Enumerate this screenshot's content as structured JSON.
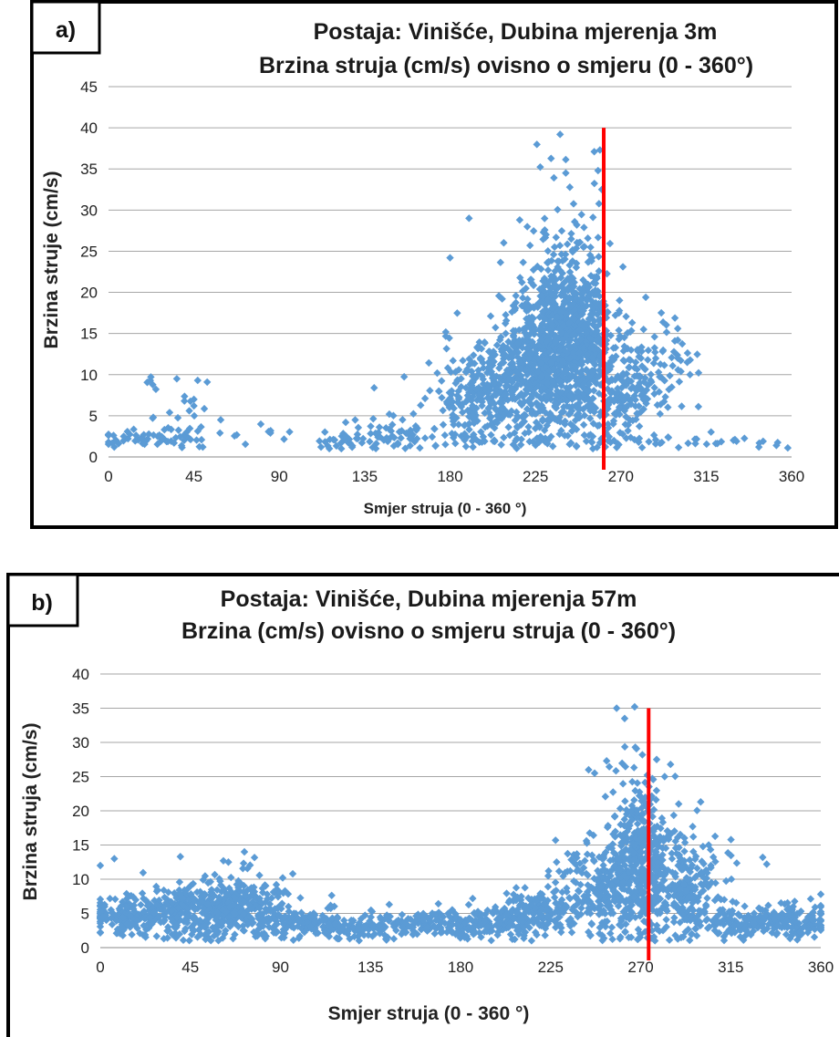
{
  "chart_data": [
    {
      "panel_label": "a)",
      "type": "scatter",
      "title": "Postaja: Vinišće, Dubina mjerenja  3m",
      "subtitle": "Brzina struja (cm/s) ovisno o smjeru (0 - 360°)",
      "xlabel": "Smjer struja (0 - 360 °)",
      "ylabel": "Brzina struje (cm/s)",
      "xlim": [
        0,
        360
      ],
      "ylim": [
        0,
        45
      ],
      "xticks": [
        "0",
        "45",
        "90",
        "135",
        "180",
        "225",
        "270",
        "315",
        "360"
      ],
      "yticks": [
        "0",
        "5",
        "10",
        "15",
        "20",
        "25",
        "30",
        "35",
        "40",
        "45"
      ],
      "grid": "horizontal",
      "marker_color": "#5b9bd5",
      "reference_line": {
        "x": 261,
        "y_range": [
          0,
          40
        ],
        "color": "#ff0000"
      },
      "clusters": [
        {
          "cx": 22,
          "cy": 2.2,
          "sx": 16,
          "sy": 0.8,
          "n": 50
        },
        {
          "cx": 40,
          "cy": 4.5,
          "sx": 8,
          "sy": 2.5,
          "n": 22
        },
        {
          "cx": 22,
          "cy": 8.5,
          "sx": 2,
          "sy": 1,
          "n": 4
        },
        {
          "cx": 85,
          "cy": 2.6,
          "sx": 12,
          "sy": 1,
          "n": 8
        },
        {
          "cx": 130,
          "cy": 2.2,
          "sx": 12,
          "sy": 1,
          "n": 35
        },
        {
          "cx": 158,
          "cy": 2.5,
          "sx": 12,
          "sy": 1.3,
          "n": 45
        },
        {
          "cx": 192,
          "cy": 7,
          "sx": 10,
          "sy": 4.5,
          "n": 200
        },
        {
          "cx": 222,
          "cy": 10,
          "sx": 13,
          "sy": 5,
          "n": 450
        },
        {
          "cx": 240,
          "cy": 16,
          "sx": 11,
          "sy": 7,
          "n": 650
        },
        {
          "cx": 252,
          "cy": 12,
          "sx": 8,
          "sy": 6,
          "n": 250
        },
        {
          "cx": 272,
          "cy": 8,
          "sx": 10,
          "sy": 4,
          "n": 180
        },
        {
          "cx": 295,
          "cy": 11,
          "sx": 8,
          "sy": 3,
          "n": 45
        },
        {
          "cx": 320,
          "cy": 1.8,
          "sx": 25,
          "sy": 0.5,
          "n": 25
        }
      ],
      "points": [
        [
          238,
          39.2
        ],
        [
          256,
          37.1
        ],
        [
          259,
          37.3
        ],
        [
          258,
          34.8
        ],
        [
          241,
          34.5
        ],
        [
          260,
          32.5
        ],
        [
          190,
          29
        ],
        [
          180,
          24.2
        ],
        [
          22,
          9.3
        ],
        [
          36,
          9.5
        ],
        [
          47,
          9.3
        ],
        [
          52,
          9.1
        ],
        [
          45,
          7
        ],
        [
          45,
          6.2
        ],
        [
          40,
          6.8
        ],
        [
          140,
          8.4
        ],
        [
          130,
          4.5
        ],
        [
          125,
          4.2
        ],
        [
          112,
          1.2
        ],
        [
          148,
          5.2
        ],
        [
          2,
          1.7
        ],
        [
          3,
          1.2
        ],
        [
          8,
          2.5
        ],
        [
          300,
          15.6
        ],
        [
          300,
          14.2
        ],
        [
          300,
          12
        ],
        [
          305,
          11.5
        ],
        [
          282,
          15.5
        ],
        [
          275,
          15.2
        ],
        [
          262,
          6
        ],
        [
          358,
          1.1
        ],
        [
          352,
          1.4
        ],
        [
          345,
          1.9
        ],
        [
          331,
          1.9
        ]
      ]
    },
    {
      "panel_label": "b)",
      "type": "scatter",
      "title": "Postaja: Vinišće, Dubina  mjerenja 57m",
      "subtitle": "Brzina (cm/s) ovisno o smjeru struja (0 - 360°)",
      "xlabel": "Smjer struja (0 - 360 °)",
      "ylabel": "Brzina struja (cm/s)",
      "xlim": [
        0,
        360
      ],
      "ylim": [
        0,
        40
      ],
      "xticks": [
        "0",
        "45",
        "90",
        "135",
        "180",
        "225",
        "270",
        "315",
        "360"
      ],
      "yticks": [
        "0",
        "5",
        "10",
        "15",
        "20",
        "25",
        "30",
        "35",
        "40"
      ],
      "grid": "horizontal",
      "marker_color": "#5b9bd5",
      "reference_line": {
        "x": 274,
        "y_range": [
          0,
          35
        ],
        "color": "#ff0000"
      },
      "clusters": [
        {
          "cx": 15,
          "cy": 4.5,
          "sx": 12,
          "sy": 2,
          "n": 150
        },
        {
          "cx": 45,
          "cy": 5.5,
          "sx": 14,
          "sy": 2.5,
          "n": 250
        },
        {
          "cx": 72,
          "cy": 6,
          "sx": 12,
          "sy": 2.8,
          "n": 250
        },
        {
          "cx": 105,
          "cy": 3.5,
          "sx": 12,
          "sy": 1.5,
          "n": 120
        },
        {
          "cx": 140,
          "cy": 3,
          "sx": 18,
          "sy": 1.2,
          "n": 150
        },
        {
          "cx": 185,
          "cy": 3.5,
          "sx": 16,
          "sy": 1.5,
          "n": 150
        },
        {
          "cx": 222,
          "cy": 5,
          "sx": 13,
          "sy": 2.2,
          "n": 200
        },
        {
          "cx": 255,
          "cy": 9,
          "sx": 10,
          "sy": 4.5,
          "n": 250
        },
        {
          "cx": 270,
          "cy": 14,
          "sx": 7,
          "sy": 7.5,
          "n": 350
        },
        {
          "cx": 290,
          "cy": 9,
          "sx": 11,
          "sy": 4.5,
          "n": 250
        },
        {
          "cx": 320,
          "cy": 3.5,
          "sx": 14,
          "sy": 1.5,
          "n": 150
        },
        {
          "cx": 348,
          "cy": 4,
          "sx": 10,
          "sy": 1.6,
          "n": 120
        }
      ],
      "points": [
        [
          0,
          12
        ],
        [
          7,
          13
        ],
        [
          40,
          13.3
        ],
        [
          72,
          14
        ],
        [
          64,
          12.5
        ],
        [
          258,
          35
        ],
        [
          267,
          35.2
        ],
        [
          262,
          33.5
        ],
        [
          253,
          27.3
        ],
        [
          247,
          25.5
        ],
        [
          244,
          26
        ],
        [
          278,
          27.5
        ],
        [
          282,
          25
        ],
        [
          289,
          21
        ],
        [
          300,
          21.3
        ],
        [
          296,
          17.7
        ],
        [
          331,
          13.2
        ],
        [
          333,
          12.2
        ],
        [
          228,
          12.5
        ],
        [
          224,
          11.2
        ],
        [
          240,
          9.2
        ],
        [
          360,
          7.8
        ],
        [
          304,
          15
        ]
      ]
    }
  ]
}
